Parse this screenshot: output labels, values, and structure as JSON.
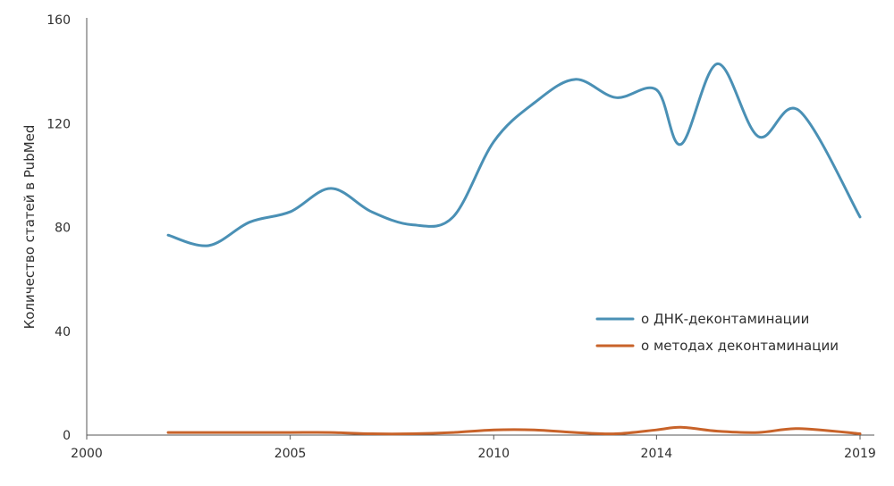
{
  "chart_data": {
    "type": "line",
    "title": "",
    "xlabel": "",
    "ylabel": "Количество статей в PubMed",
    "xlim": [
      2000,
      2019
    ],
    "ylim": [
      0,
      160
    ],
    "x_ticks": [
      2000,
      2005,
      2010,
      2014,
      2019
    ],
    "x_tick_labels": [
      "2000",
      "2005",
      "2010",
      "2014",
      "2019"
    ],
    "y_ticks": [
      0,
      40,
      80,
      120,
      160
    ],
    "y_tick_labels": [
      "0",
      "40",
      "80",
      "120",
      "160"
    ],
    "grid": false,
    "legend_position": "right",
    "series": [
      {
        "name": "о ДНК-деконтаминации",
        "color": "#4a90b5",
        "points": [
          [
            2002,
            77
          ],
          [
            2003,
            73
          ],
          [
            2004,
            82
          ],
          [
            2005,
            86
          ],
          [
            2006,
            95
          ],
          [
            2007,
            86
          ],
          [
            2008,
            81
          ],
          [
            2009,
            84
          ],
          [
            2010,
            113
          ],
          [
            2011,
            128
          ],
          [
            2012,
            137
          ],
          [
            2013,
            130
          ],
          [
            2014,
            133
          ],
          [
            2014.6,
            112
          ],
          [
            2015.5,
            143
          ],
          [
            2016.5,
            115
          ],
          [
            2017.5,
            125
          ],
          [
            2019,
            84
          ]
        ]
      },
      {
        "name": "о методах деконтаминации",
        "color": "#c8632a",
        "points": [
          [
            2002,
            1
          ],
          [
            2003,
            1
          ],
          [
            2004,
            1
          ],
          [
            2005,
            1
          ],
          [
            2006,
            1
          ],
          [
            2007,
            0.5
          ],
          [
            2008,
            0.5
          ],
          [
            2009,
            1
          ],
          [
            2010,
            2
          ],
          [
            2011,
            2
          ],
          [
            2012,
            1
          ],
          [
            2013,
            0.5
          ],
          [
            2014,
            2
          ],
          [
            2014.6,
            3
          ],
          [
            2015.5,
            1.5
          ],
          [
            2016.5,
            1
          ],
          [
            2017.5,
            2.5
          ],
          [
            2019,
            0.5
          ]
        ]
      }
    ]
  }
}
